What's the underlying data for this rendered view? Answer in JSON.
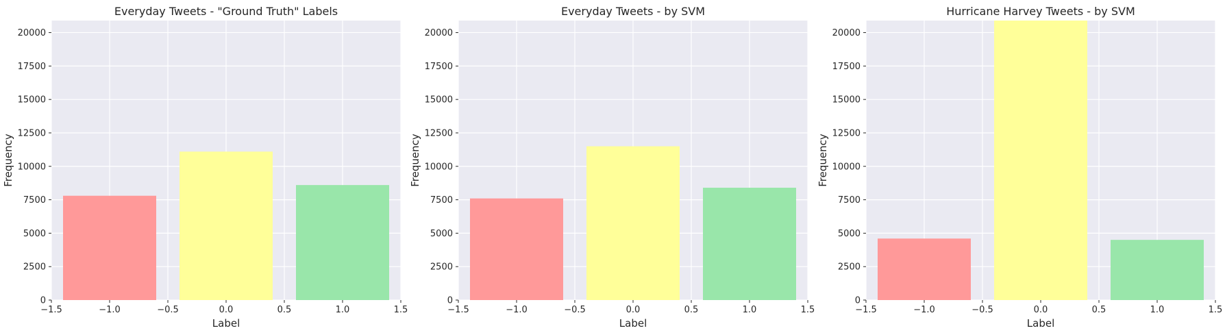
{
  "chart_data": [
    {
      "type": "bar",
      "title": "Everyday Tweets - \"Ground Truth\" Labels",
      "xlabel": "Label",
      "ylabel": "Frequency",
      "x": [
        -1.0,
        0.0,
        1.0
      ],
      "values": [
        7800,
        11100,
        8600
      ],
      "colors": [
        "#ff9999",
        "#ffff99",
        "#99e6aa"
      ],
      "xlim": [
        -1.5,
        1.5
      ],
      "ylim": [
        0,
        20900
      ],
      "xticks": [
        "−1.5",
        "−1.0",
        "−0.5",
        "0.0",
        "0.5",
        "1.0",
        "1.5"
      ],
      "yticks": [
        "0",
        "2500",
        "5000",
        "7500",
        "10000",
        "12500",
        "15000",
        "17500",
        "20000"
      ],
      "grid": true
    },
    {
      "type": "bar",
      "title": "Everyday Tweets - by SVM",
      "xlabel": "Label",
      "ylabel": "Frequency",
      "x": [
        -1.0,
        0.0,
        1.0
      ],
      "values": [
        7600,
        11500,
        8400
      ],
      "colors": [
        "#ff9999",
        "#ffff99",
        "#99e6aa"
      ],
      "xlim": [
        -1.5,
        1.5
      ],
      "ylim": [
        0,
        20900
      ],
      "xticks": [
        "−1.5",
        "−1.0",
        "−0.5",
        "0.0",
        "0.5",
        "1.0",
        "1.5"
      ],
      "yticks": [
        "0",
        "2500",
        "5000",
        "7500",
        "10000",
        "12500",
        "15000",
        "17500",
        "20000"
      ],
      "grid": true
    },
    {
      "type": "bar",
      "title": "Hurricane Harvey Tweets - by SVM",
      "xlabel": "Label",
      "ylabel": "Frequency",
      "x": [
        -1.0,
        0.0,
        1.0
      ],
      "values": [
        4600,
        20900,
        4500
      ],
      "colors": [
        "#ff9999",
        "#ffff99",
        "#99e6aa"
      ],
      "xlim": [
        -1.5,
        1.5
      ],
      "ylim": [
        0,
        20900
      ],
      "xticks": [
        "−1.5",
        "−1.0",
        "−0.5",
        "0.0",
        "0.5",
        "1.0",
        "1.5"
      ],
      "yticks": [
        "0",
        "2500",
        "5000",
        "7500",
        "10000",
        "12500",
        "15000",
        "17500",
        "20000"
      ],
      "grid": true
    }
  ]
}
